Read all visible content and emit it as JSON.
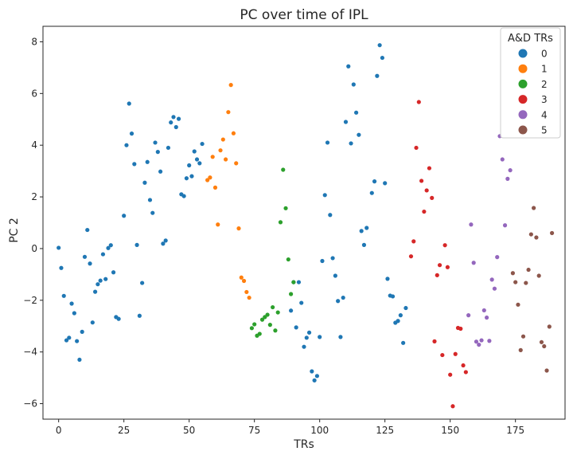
{
  "chart_data": {
    "type": "scatter",
    "title": "PC over time of IPL",
    "xlabel": "TRs",
    "ylabel": "PC 2",
    "xlim": [
      -6,
      194
    ],
    "ylim": [
      -6.6,
      8.6
    ],
    "xticks": [
      0,
      25,
      50,
      75,
      100,
      125,
      150,
      175
    ],
    "yticks": [
      -6,
      -4,
      -2,
      0,
      2,
      4,
      6,
      8
    ],
    "grid": false,
    "legend": {
      "title": "A&D TRs",
      "placement": "top-right"
    },
    "series": [
      {
        "name": "0",
        "color": "#1f77b4",
        "points": [
          [
            0,
            0.03
          ],
          [
            1,
            -0.75
          ],
          [
            2,
            -1.83
          ],
          [
            3,
            -3.55
          ],
          [
            4,
            -3.45
          ],
          [
            5,
            -2.13
          ],
          [
            6,
            -2.5
          ],
          [
            7,
            -3.58
          ],
          [
            8,
            -4.3
          ],
          [
            9,
            -3.22
          ],
          [
            10,
            -0.32
          ],
          [
            11,
            0.72
          ],
          [
            12,
            -0.58
          ],
          [
            13,
            -2.86
          ],
          [
            14,
            -1.67
          ],
          [
            15,
            -1.38
          ],
          [
            16,
            -1.24
          ],
          [
            17,
            -0.22
          ],
          [
            18,
            -1.18
          ],
          [
            19,
            0.02
          ],
          [
            20,
            0.13
          ],
          [
            21,
            -0.92
          ],
          [
            22,
            -2.65
          ],
          [
            23,
            -2.72
          ],
          [
            25,
            1.27
          ],
          [
            26,
            4.0
          ],
          [
            27,
            5.61
          ],
          [
            28,
            4.45
          ],
          [
            29,
            3.27
          ],
          [
            30,
            0.14
          ],
          [
            31,
            -2.6
          ],
          [
            32,
            -1.33
          ],
          [
            33,
            2.55
          ],
          [
            34,
            3.35
          ],
          [
            35,
            1.88
          ],
          [
            36,
            1.38
          ],
          [
            37,
            4.1
          ],
          [
            38,
            3.74
          ],
          [
            39,
            2.98
          ],
          [
            40,
            0.19
          ],
          [
            41,
            0.31
          ],
          [
            42,
            3.9
          ],
          [
            43,
            4.88
          ],
          [
            44,
            5.09
          ],
          [
            45,
            4.7
          ],
          [
            46,
            5.02
          ],
          [
            47,
            2.1
          ],
          [
            48,
            2.03
          ],
          [
            49,
            2.72
          ],
          [
            50,
            3.22
          ],
          [
            51,
            2.8
          ],
          [
            52,
            3.76
          ],
          [
            53,
            3.45
          ],
          [
            54,
            3.3
          ],
          [
            55,
            4.05
          ],
          [
            89,
            -2.4
          ],
          [
            90,
            -1.3
          ],
          [
            91,
            -3.05
          ],
          [
            92,
            -1.3
          ],
          [
            93,
            -2.1
          ],
          [
            94,
            -3.8
          ],
          [
            95,
            -3.45
          ],
          [
            96,
            -3.25
          ],
          [
            97,
            -4.75
          ],
          [
            98,
            -5.1
          ],
          [
            99,
            -4.93
          ],
          [
            100,
            -3.42
          ],
          [
            101,
            -0.48
          ],
          [
            102,
            2.07
          ],
          [
            103,
            4.1
          ],
          [
            104,
            1.3
          ],
          [
            105,
            -0.37
          ],
          [
            106,
            -1.05
          ],
          [
            107,
            -2.03
          ],
          [
            108,
            -3.42
          ],
          [
            109,
            -1.9
          ],
          [
            110,
            4.9
          ],
          [
            111,
            7.05
          ],
          [
            112,
            4.07
          ],
          [
            113,
            6.35
          ],
          [
            114,
            5.26
          ],
          [
            115,
            4.4
          ],
          [
            116,
            0.68
          ],
          [
            117,
            0.14
          ],
          [
            118,
            0.8
          ],
          [
            120,
            2.15
          ],
          [
            121,
            2.6
          ],
          [
            122,
            6.68
          ],
          [
            123,
            7.87
          ],
          [
            124,
            7.38
          ],
          [
            125,
            2.53
          ],
          [
            126,
            -1.17
          ],
          [
            127,
            -1.82
          ],
          [
            128,
            -1.85
          ],
          [
            129,
            -2.87
          ],
          [
            130,
            -2.8
          ],
          [
            131,
            -2.58
          ],
          [
            132,
            -3.65
          ],
          [
            133,
            -2.3
          ]
        ]
      },
      {
        "name": "1",
        "color": "#ff7f0e",
        "points": [
          [
            57,
            2.65
          ],
          [
            58,
            2.75
          ],
          [
            59,
            3.55
          ],
          [
            60,
            2.36
          ],
          [
            61,
            0.93
          ],
          [
            62,
            3.8
          ],
          [
            63,
            4.22
          ],
          [
            64,
            3.45
          ],
          [
            65,
            5.28
          ],
          [
            66,
            6.33
          ],
          [
            67,
            4.46
          ],
          [
            68,
            3.3
          ],
          [
            69,
            0.78
          ],
          [
            70,
            -1.12
          ],
          [
            71,
            -1.25
          ],
          [
            72,
            -1.68
          ],
          [
            73,
            -1.9
          ]
        ]
      },
      {
        "name": "2",
        "color": "#2ca02c",
        "points": [
          [
            74,
            -3.08
          ],
          [
            75,
            -2.93
          ],
          [
            76,
            -3.37
          ],
          [
            77,
            -3.3
          ],
          [
            78,
            -2.75
          ],
          [
            79,
            -2.65
          ],
          [
            80,
            -2.56
          ],
          [
            81,
            -2.95
          ],
          [
            82,
            -2.27
          ],
          [
            83,
            -3.17
          ],
          [
            84,
            -2.47
          ],
          [
            85,
            1.02
          ],
          [
            86,
            3.05
          ],
          [
            87,
            1.56
          ],
          [
            88,
            -0.42
          ],
          [
            89,
            -1.76
          ],
          [
            90,
            -1.3
          ]
        ]
      },
      {
        "name": "3",
        "color": "#d62728",
        "points": [
          [
            135,
            -0.3
          ],
          [
            136,
            0.28
          ],
          [
            137,
            3.9
          ],
          [
            138,
            5.67
          ],
          [
            139,
            2.62
          ],
          [
            140,
            1.43
          ],
          [
            141,
            2.25
          ],
          [
            142,
            3.11
          ],
          [
            143,
            1.96
          ],
          [
            144,
            -3.59
          ],
          [
            145,
            -1.03
          ],
          [
            146,
            -0.64
          ],
          [
            147,
            -4.12
          ],
          [
            148,
            0.13
          ],
          [
            149,
            -0.72
          ],
          [
            150,
            -4.88
          ],
          [
            151,
            -6.1
          ],
          [
            152,
            -4.08
          ],
          [
            153,
            -3.07
          ],
          [
            154,
            -3.1
          ],
          [
            155,
            -4.52
          ],
          [
            156,
            -4.78
          ]
        ]
      },
      {
        "name": "4",
        "color": "#9467bd",
        "points": [
          [
            157,
            -2.58
          ],
          [
            158,
            0.93
          ],
          [
            159,
            -0.55
          ],
          [
            160,
            -3.6
          ],
          [
            161,
            -3.72
          ],
          [
            162,
            -3.55
          ],
          [
            163,
            -2.39
          ],
          [
            164,
            -2.67
          ],
          [
            165,
            -3.57
          ],
          [
            166,
            -1.2
          ],
          [
            167,
            -1.55
          ],
          [
            168,
            -0.33
          ],
          [
            169,
            4.35
          ],
          [
            170,
            3.45
          ],
          [
            171,
            0.9
          ],
          [
            172,
            2.7
          ],
          [
            173,
            3.03
          ]
        ]
      },
      {
        "name": "5",
        "color": "#8c564b",
        "points": [
          [
            174,
            -0.95
          ],
          [
            175,
            -1.3
          ],
          [
            176,
            -2.17
          ],
          [
            177,
            -3.93
          ],
          [
            178,
            -3.4
          ],
          [
            179,
            -1.33
          ],
          [
            180,
            -0.82
          ],
          [
            181,
            0.55
          ],
          [
            182,
            1.57
          ],
          [
            183,
            0.43
          ],
          [
            184,
            -1.05
          ],
          [
            185,
            -3.62
          ],
          [
            186,
            -3.78
          ],
          [
            187,
            -4.72
          ],
          [
            188,
            -3.02
          ],
          [
            189,
            0.6
          ]
        ]
      }
    ]
  }
}
